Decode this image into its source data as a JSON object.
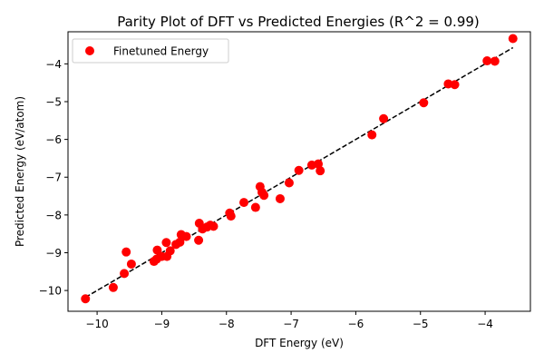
{
  "chart_data": {
    "type": "scatter",
    "title": "Parity Plot of DFT vs Predicted Energies (R^2 = 0.99)",
    "xlabel": "DFT Energy (eV)",
    "ylabel": "Predicted Energy (eV/atom)",
    "xlim": [
      -10.45,
      -3.3
    ],
    "ylim": [
      -10.55,
      -3.15
    ],
    "xticks": [
      -10,
      -9,
      -8,
      -7,
      -6,
      -5,
      -4
    ],
    "yticks": [
      -10,
      -9,
      -8,
      -7,
      -6,
      -5,
      -4
    ],
    "xtick_labels": [
      "−10",
      "−9",
      "−8",
      "−7",
      "−6",
      "−5",
      "−4"
    ],
    "ytick_labels": [
      "−10",
      "−9",
      "−8",
      "−7",
      "−6",
      "−5",
      "−4"
    ],
    "grid": false,
    "legend_position": "top-left",
    "series": [
      {
        "name": "Finetuned Energy",
        "color": "#ff0000",
        "marker": "circle",
        "points": [
          [
            -10.18,
            -10.22
          ],
          [
            -9.75,
            -9.92
          ],
          [
            -9.58,
            -9.55
          ],
          [
            -9.55,
            -8.98
          ],
          [
            -9.47,
            -9.3
          ],
          [
            -9.12,
            -9.23
          ],
          [
            -9.07,
            -8.93
          ],
          [
            -9.08,
            -9.17
          ],
          [
            -9.0,
            -9.1
          ],
          [
            -8.93,
            -8.73
          ],
          [
            -8.92,
            -9.1
          ],
          [
            -8.87,
            -8.95
          ],
          [
            -8.78,
            -8.78
          ],
          [
            -8.72,
            -8.72
          ],
          [
            -8.7,
            -8.52
          ],
          [
            -8.62,
            -8.57
          ],
          [
            -8.43,
            -8.67
          ],
          [
            -8.42,
            -8.22
          ],
          [
            -8.37,
            -8.37
          ],
          [
            -8.3,
            -8.32
          ],
          [
            -8.25,
            -8.27
          ],
          [
            -8.2,
            -8.3
          ],
          [
            -7.95,
            -7.95
          ],
          [
            -7.93,
            -8.03
          ],
          [
            -7.73,
            -7.67
          ],
          [
            -7.55,
            -7.8
          ],
          [
            -7.48,
            -7.25
          ],
          [
            -7.45,
            -7.4
          ],
          [
            -7.42,
            -7.48
          ],
          [
            -7.17,
            -7.57
          ],
          [
            -7.03,
            -7.15
          ],
          [
            -6.88,
            -6.82
          ],
          [
            -6.68,
            -6.68
          ],
          [
            -6.58,
            -6.65
          ],
          [
            -6.55,
            -6.83
          ],
          [
            -5.75,
            -5.88
          ],
          [
            -5.57,
            -5.45
          ],
          [
            -4.95,
            -5.03
          ],
          [
            -4.57,
            -4.53
          ],
          [
            -4.47,
            -4.55
          ],
          [
            -3.97,
            -3.92
          ],
          [
            -3.85,
            -3.93
          ],
          [
            -3.57,
            -3.33
          ]
        ]
      }
    ],
    "reference_line": {
      "style": "dashed",
      "color": "#000000",
      "x": [
        -10.18,
        -3.57
      ],
      "y": [
        -10.18,
        -3.57
      ]
    }
  }
}
